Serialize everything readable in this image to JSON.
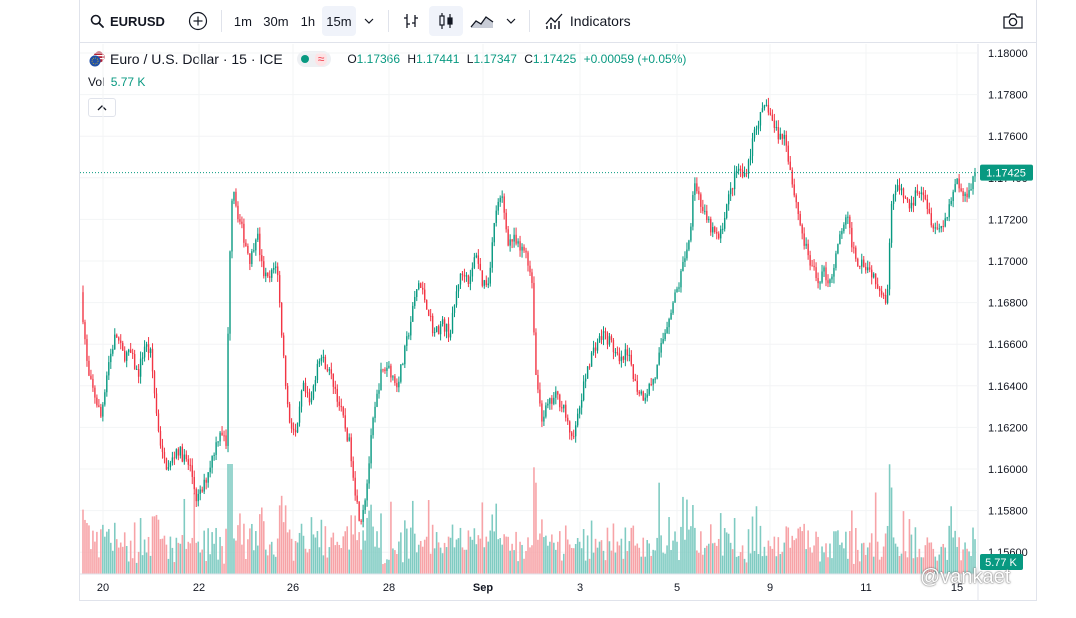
{
  "toolbar": {
    "symbol": "EURUSD",
    "intervals": [
      "1m",
      "30m",
      "1h",
      "15m"
    ],
    "active_interval": "15m",
    "indicators_label": "Indicators"
  },
  "legend": {
    "title": "Euro / U.S. Dollar · 15 · ICE",
    "open": "1.17366",
    "high": "1.17441",
    "low": "1.17347",
    "close": "1.17425",
    "change": "+0.00059 (+0.05%)"
  },
  "volume": {
    "label": "Vol",
    "value": "5.77 K"
  },
  "watermark": "@vankaet",
  "colors": {
    "up": "#089981",
    "down": "#f23645",
    "up_vol": "#7fcbc2",
    "down_vol": "#f7a3a7"
  },
  "chart_data": {
    "type": "candlestick",
    "y_axis_ticks": [
      "1.18000",
      "1.17800",
      "1.17600",
      "1.17400",
      "1.17200",
      "1.17000",
      "1.16800",
      "1.16600",
      "1.16400",
      "1.16200",
      "1.16000",
      "1.15800",
      "1.15600"
    ],
    "x_axis_ticks": [
      "20",
      "22",
      "26",
      "28",
      "Sep",
      "3",
      "5",
      "9",
      "11",
      "15"
    ],
    "ylim": [
      1.155,
      1.1805
    ],
    "last_price": "1.17425",
    "last_volume": "5.77 K",
    "price_path": [
      [
        0,
        1.1685
      ],
      [
        7,
        1.1645
      ],
      [
        14,
        1.1635
      ],
      [
        20,
        1.1625
      ],
      [
        27,
        1.165
      ],
      [
        35,
        1.1665
      ],
      [
        42,
        1.1655
      ],
      [
        50,
        1.1655
      ],
      [
        57,
        1.1645
      ],
      [
        64,
        1.166
      ],
      [
        70,
        1.1655
      ],
      [
        76,
        1.1625
      ],
      [
        82,
        1.1605
      ],
      [
        88,
        1.16
      ],
      [
        96,
        1.161
      ],
      [
        104,
        1.1605
      ],
      [
        110,
        1.16
      ],
      [
        116,
        1.1585
      ],
      [
        122,
        1.159
      ],
      [
        128,
        1.16
      ],
      [
        134,
        1.161
      ],
      [
        140,
        1.162
      ],
      [
        146,
        1.161
      ],
      [
        148,
        1.169
      ],
      [
        152,
        1.174
      ],
      [
        156,
        1.1725
      ],
      [
        164,
        1.171
      ],
      [
        170,
        1.17
      ],
      [
        176,
        1.1715
      ],
      [
        182,
        1.1695
      ],
      [
        188,
        1.169
      ],
      [
        196,
        1.17
      ],
      [
        202,
        1.166
      ],
      [
        208,
        1.1625
      ],
      [
        216,
        1.1615
      ],
      [
        222,
        1.164
      ],
      [
        230,
        1.163
      ],
      [
        238,
        1.1655
      ],
      [
        246,
        1.165
      ],
      [
        254,
        1.164
      ],
      [
        262,
        1.1625
      ],
      [
        270,
        1.161
      ],
      [
        276,
        1.1585
      ],
      [
        280,
        1.1575
      ],
      [
        286,
        1.159
      ],
      [
        292,
        1.162
      ],
      [
        300,
        1.1645
      ],
      [
        308,
        1.165
      ],
      [
        316,
        1.164
      ],
      [
        322,
        1.165
      ],
      [
        330,
        1.167
      ],
      [
        338,
        1.169
      ],
      [
        346,
        1.168
      ],
      [
        354,
        1.1665
      ],
      [
        362,
        1.167
      ],
      [
        370,
        1.1665
      ],
      [
        378,
        1.169
      ],
      [
        384,
        1.1695
      ],
      [
        390,
        1.169
      ],
      [
        396,
        1.1705
      ],
      [
        402,
        1.169
      ],
      [
        408,
        1.169
      ],
      [
        416,
        1.1725
      ],
      [
        422,
        1.173
      ],
      [
        428,
        1.171
      ],
      [
        434,
        1.171
      ],
      [
        440,
        1.1705
      ],
      [
        446,
        1.1705
      ],
      [
        452,
        1.169
      ],
      [
        456,
        1.1645
      ],
      [
        462,
        1.1625
      ],
      [
        468,
        1.163
      ],
      [
        476,
        1.1635
      ],
      [
        484,
        1.163
      ],
      [
        490,
        1.1615
      ],
      [
        496,
        1.162
      ],
      [
        502,
        1.1635
      ],
      [
        508,
        1.165
      ],
      [
        516,
        1.166
      ],
      [
        524,
        1.1665
      ],
      [
        532,
        1.166
      ],
      [
        540,
        1.165
      ],
      [
        546,
        1.1655
      ],
      [
        552,
        1.165
      ],
      [
        556,
        1.164
      ],
      [
        564,
        1.1635
      ],
      [
        570,
        1.164
      ],
      [
        576,
        1.1645
      ],
      [
        582,
        1.166
      ],
      [
        590,
        1.1675
      ],
      [
        600,
        1.169
      ],
      [
        606,
        1.1705
      ],
      [
        610,
        1.171
      ],
      [
        614,
        1.174
      ],
      [
        620,
        1.173
      ],
      [
        626,
        1.172
      ],
      [
        632,
        1.1715
      ],
      [
        640,
        1.171
      ],
      [
        646,
        1.1725
      ],
      [
        652,
        1.1735
      ],
      [
        658,
        1.1745
      ],
      [
        664,
        1.174
      ],
      [
        670,
        1.175
      ],
      [
        676,
        1.1765
      ],
      [
        682,
        1.177
      ],
      [
        688,
        1.1775
      ],
      [
        694,
        1.1765
      ],
      [
        700,
        1.176
      ],
      [
        706,
        1.176
      ],
      [
        712,
        1.174
      ],
      [
        718,
        1.1725
      ],
      [
        724,
        1.171
      ],
      [
        730,
        1.17
      ],
      [
        738,
        1.169
      ],
      [
        744,
        1.1695
      ],
      [
        750,
        1.169
      ],
      [
        756,
        1.17
      ],
      [
        762,
        1.1715
      ],
      [
        768,
        1.172
      ],
      [
        772,
        1.171
      ],
      [
        778,
        1.17
      ],
      [
        784,
        1.17
      ],
      [
        792,
        1.1695
      ],
      [
        798,
        1.169
      ],
      [
        804,
        1.1685
      ],
      [
        808,
        1.168
      ],
      [
        812,
        1.173
      ],
      [
        818,
        1.1735
      ],
      [
        826,
        1.173
      ],
      [
        832,
        1.1725
      ],
      [
        838,
        1.1735
      ],
      [
        844,
        1.1735
      ],
      [
        852,
        1.172
      ],
      [
        860,
        1.1715
      ],
      [
        866,
        1.172
      ],
      [
        872,
        1.173
      ],
      [
        878,
        1.174
      ],
      [
        884,
        1.173
      ],
      [
        890,
        1.1735
      ],
      [
        896,
        1.17425
      ]
    ]
  }
}
